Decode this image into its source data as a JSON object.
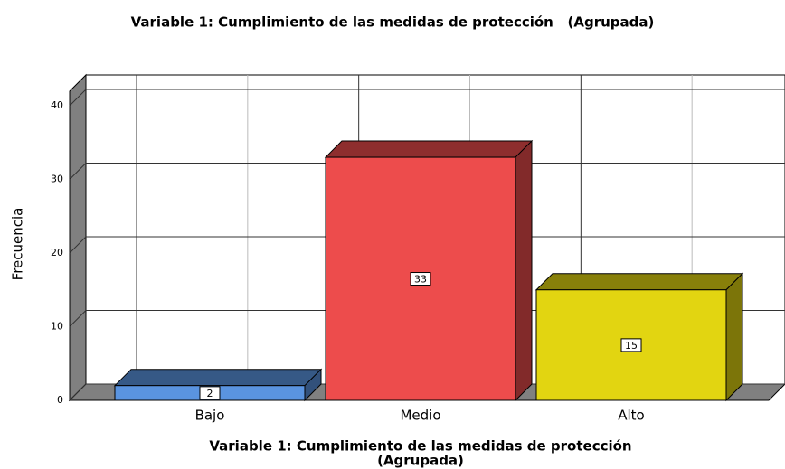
{
  "chart_data": {
    "type": "bar3d",
    "title": "Variable 1: Cumplimiento de las medidas de protección   (Agrupada)",
    "ylabel": "Frecuencia",
    "xlabel": [
      "Variable 1: Cumplimiento de las medidas de protección",
      "(Agrupada)"
    ],
    "categories": [
      "Bajo",
      "Medio",
      "Alto"
    ],
    "values": [
      2,
      33,
      15
    ],
    "colors": [
      "#5a94e0",
      "#ed4c4c",
      "#e2d511"
    ],
    "ylim": [
      0,
      42
    ],
    "yticks": [
      0,
      10,
      20,
      30,
      40
    ],
    "grid": true
  }
}
